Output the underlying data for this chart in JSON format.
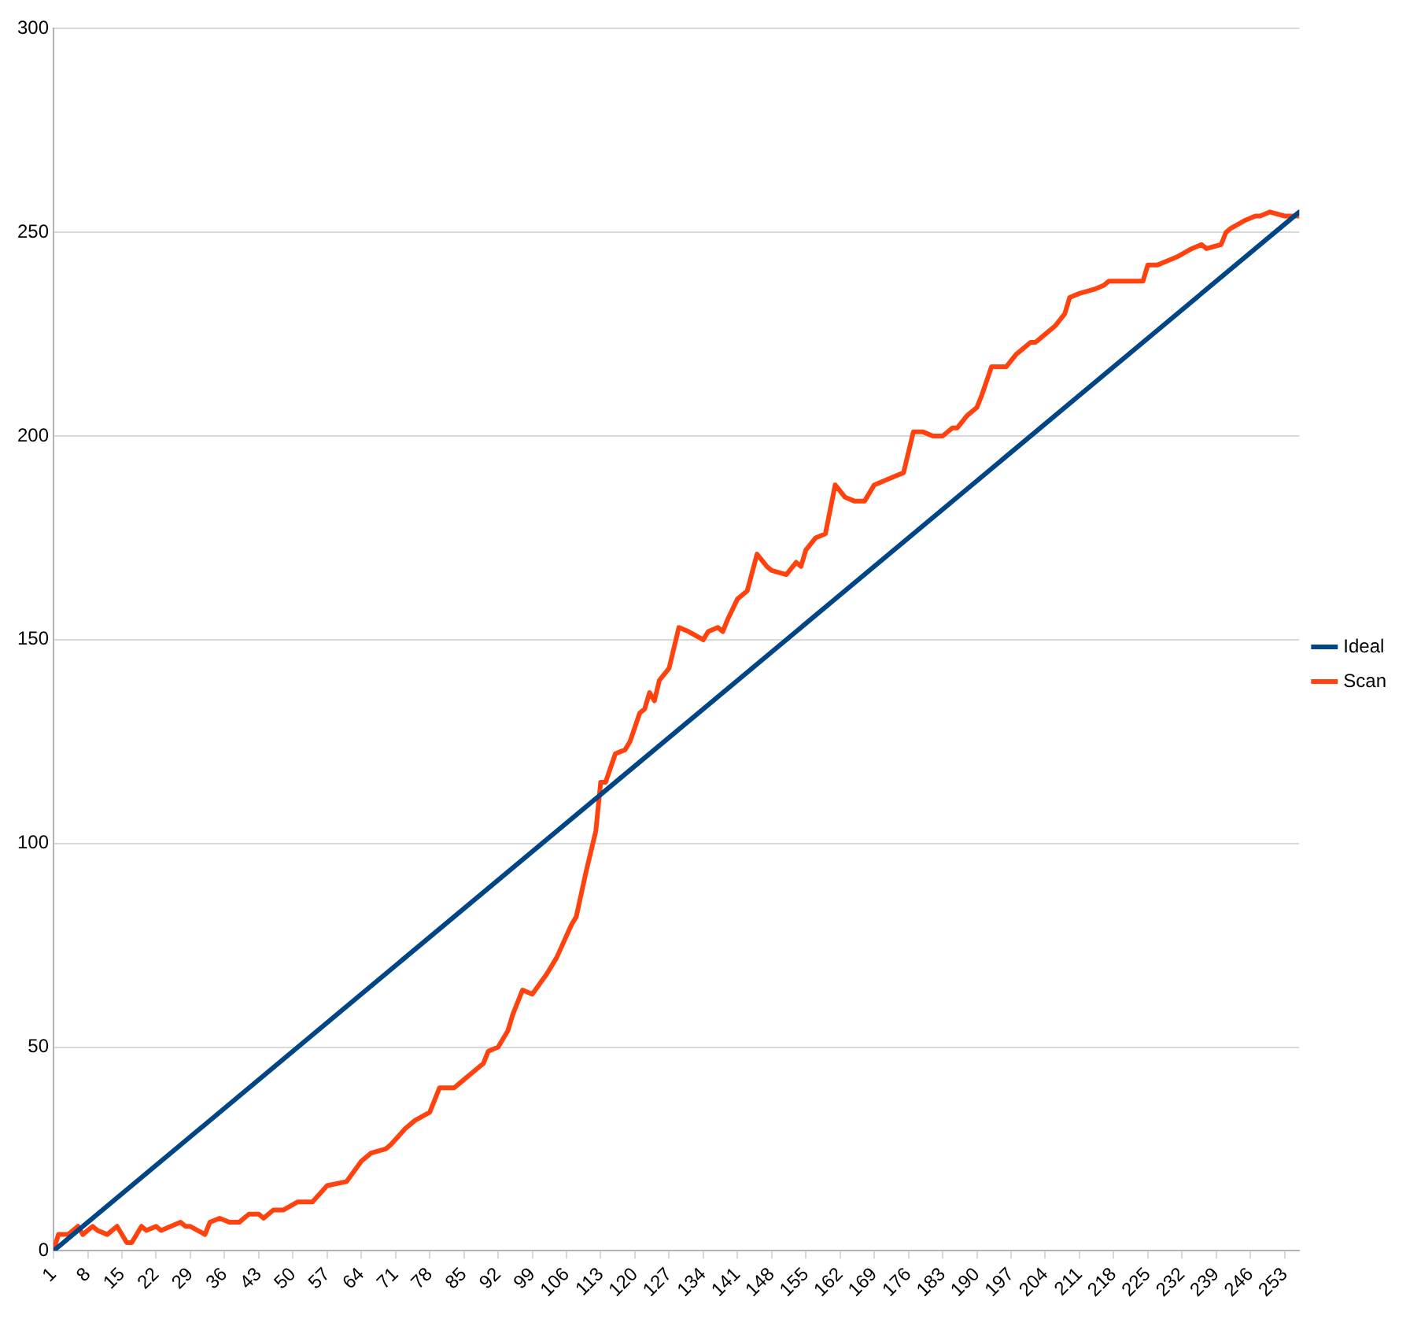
{
  "chart_data": {
    "type": "line",
    "xlim": [
      1,
      256
    ],
    "xticks": [
      1,
      8,
      15,
      22,
      29,
      36,
      43,
      50,
      57,
      64,
      71,
      78,
      85,
      92,
      99,
      106,
      113,
      120,
      127,
      134,
      141,
      148,
      155,
      162,
      169,
      176,
      183,
      190,
      197,
      204,
      211,
      218,
      225,
      232,
      239,
      246,
      253
    ],
    "ylim": [
      0,
      300
    ],
    "yticks": [
      0,
      50,
      100,
      150,
      200,
      250,
      300
    ],
    "grid": "y",
    "legend": "right",
    "marker": "none",
    "line_style": "solid",
    "series": [
      {
        "name": "Ideal",
        "color": "#004586",
        "x": [
          1,
          256
        ],
        "values": [
          0,
          255
        ]
      },
      {
        "name": "Scan",
        "color": "#ff420e",
        "x": [
          1,
          2,
          4,
          6,
          7,
          9,
          10,
          12,
          14,
          16,
          17,
          19,
          20,
          22,
          23,
          25,
          27,
          28,
          29,
          32,
          33,
          35,
          37,
          39,
          41,
          43,
          44,
          46,
          48,
          51,
          54,
          57,
          61,
          64,
          66,
          69,
          70,
          73,
          75,
          78,
          80,
          83,
          85,
          87,
          89,
          90,
          92,
          94,
          95,
          97,
          99,
          102,
          104,
          107,
          108,
          110,
          112,
          113,
          114,
          116,
          118,
          119,
          121,
          122,
          123,
          124,
          125,
          127,
          129,
          131,
          134,
          135,
          137,
          138,
          139,
          141,
          143,
          145,
          147,
          148,
          151,
          153,
          154,
          155,
          157,
          159,
          161,
          163,
          165,
          167,
          169,
          171,
          173,
          175,
          177,
          179,
          181,
          183,
          185,
          186,
          188,
          190,
          191,
          193,
          196,
          198,
          199,
          201,
          202,
          204,
          206,
          208,
          209,
          211,
          214,
          216,
          217,
          219,
          224,
          225,
          227,
          229,
          231,
          234,
          236,
          237,
          240,
          241,
          242,
          245,
          247,
          248,
          250,
          253,
          254,
          256
        ],
        "values": [
          0,
          4,
          4,
          6,
          4,
          6,
          5,
          4,
          6,
          2,
          2,
          6,
          5,
          6,
          5,
          6,
          7,
          6,
          6,
          4,
          7,
          8,
          7,
          7,
          9,
          9,
          8,
          10,
          10,
          12,
          12,
          16,
          17,
          22,
          24,
          25,
          26,
          30,
          32,
          34,
          40,
          40,
          42,
          44,
          46,
          49,
          50,
          54,
          58,
          64,
          63,
          68,
          72,
          80,
          82,
          93,
          103,
          115,
          115,
          122,
          123,
          125,
          132,
          133,
          137,
          135,
          140,
          143,
          153,
          152,
          150,
          152,
          153,
          152,
          155,
          160,
          162,
          171,
          168,
          167,
          166,
          169,
          168,
          172,
          175,
          176,
          188,
          185,
          184,
          184,
          188,
          189,
          190,
          191,
          201,
          201,
          200,
          200,
          202,
          202,
          205,
          207,
          210,
          217,
          217,
          220,
          221,
          223,
          223,
          225,
          227,
          230,
          234,
          235,
          236,
          237,
          238,
          238,
          238,
          242,
          242,
          243,
          244,
          246,
          247,
          246,
          247,
          250,
          251,
          253,
          254,
          254,
          255,
          254,
          254,
          254
        ]
      }
    ]
  }
}
